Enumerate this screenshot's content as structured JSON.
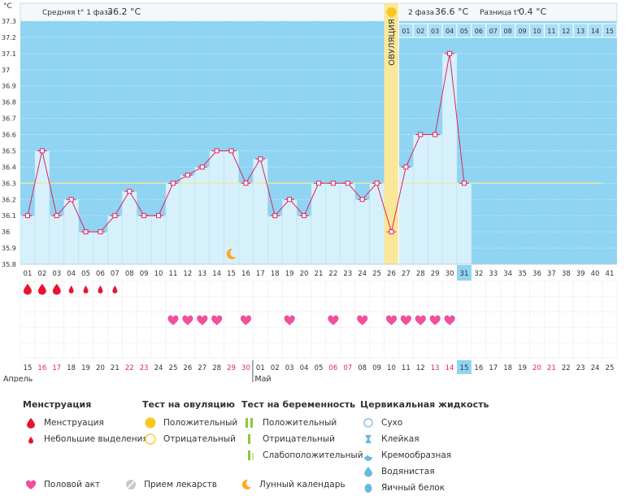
{
  "chart_data": {
    "type": "line",
    "y_unit": "°C",
    "ylim": [
      35.8,
      37.3
    ],
    "y_ticks": [
      "35.8",
      "35.9",
      "36",
      "36.1",
      "36.2",
      "36.3",
      "36.4",
      "36.5",
      "36.6",
      "36.7",
      "36.8",
      "36.9",
      "37",
      "37.1",
      "37.2",
      "37.3"
    ],
    "cycle_days": [
      "01",
      "02",
      "03",
      "04",
      "05",
      "06",
      "07",
      "08",
      "09",
      "10",
      "11",
      "12",
      "13",
      "14",
      "15",
      "16",
      "17",
      "18",
      "19",
      "20",
      "21",
      "22",
      "23",
      "24",
      "25",
      "26",
      "27",
      "28",
      "29",
      "30",
      "31",
      "32",
      "33",
      "34",
      "35",
      "36",
      "37",
      "38",
      "39",
      "40",
      "41"
    ],
    "dates": [
      "15",
      "16",
      "17",
      "18",
      "19",
      "20",
      "21",
      "22",
      "23",
      "24",
      "25",
      "26",
      "27",
      "28",
      "29",
      "30",
      "01",
      "02",
      "03",
      "04",
      "05",
      "06",
      "07",
      "08",
      "09",
      "10",
      "11",
      "12",
      "13",
      "14",
      "15",
      "16",
      "17",
      "18",
      "19",
      "20",
      "21",
      "22",
      "23",
      "24",
      "25"
    ],
    "weekend_dates_idx": [
      1,
      2,
      7,
      8,
      14,
      15,
      21,
      22,
      28,
      29,
      35,
      36
    ],
    "month_labels": [
      {
        "text": "Апрель",
        "start": 0
      },
      {
        "text": "Май",
        "start": 16
      }
    ],
    "current_day_index": 30,
    "temperatures": [
      36.1,
      36.5,
      36.1,
      36.2,
      36.0,
      36.0,
      36.1,
      36.25,
      36.1,
      36.1,
      36.3,
      36.35,
      36.4,
      36.5,
      36.5,
      36.3,
      36.45,
      36.1,
      36.2,
      36.1,
      36.3,
      36.3,
      36.3,
      36.2,
      36.3,
      36.0,
      36.4,
      36.6,
      36.6,
      37.1,
      36.3
    ],
    "coverline": 36.3,
    "ovulation_index": 25,
    "ovulation_label": "ОВУЛЯЦИЯ",
    "phase1_text": "Средняя t° 1 фаза",
    "phase1_value": "36.2 °C",
    "phase2_text": "2 фаза",
    "phase2_value": "36.6 °C",
    "diff_text": "Разница t°",
    "diff_value": "0.4 °C",
    "phase2_day_labels": [
      "01",
      "02",
      "03",
      "04",
      "05",
      "06",
      "07",
      "08",
      "09",
      "10",
      "11",
      "12",
      "13",
      "14",
      "15"
    ],
    "menstruation": [
      {
        "day": 0,
        "size": "big"
      },
      {
        "day": 1,
        "size": "big"
      },
      {
        "day": 2,
        "size": "big"
      },
      {
        "day": 3,
        "size": "small"
      },
      {
        "day": 4,
        "size": "small"
      },
      {
        "day": 5,
        "size": "small"
      },
      {
        "day": 6,
        "size": "small"
      }
    ],
    "intercourse_days": [
      10,
      11,
      12,
      13,
      15,
      18,
      21,
      23,
      25,
      26,
      27,
      28,
      29
    ],
    "moon_day": 14
  },
  "legend": {
    "menstruation": {
      "title": "Менструация",
      "items": [
        "Менструация",
        "Небольшие выделения"
      ]
    },
    "ovulation_test": {
      "title": "Тест на овуляцию",
      "items": [
        "Положительный",
        "Отрицательный"
      ]
    },
    "pregnancy_test": {
      "title": "Тест на беременность",
      "items": [
        "Положительный",
        "Отрицательный",
        "Слабоположительный"
      ]
    },
    "cervical": {
      "title": "Цервикальная жидкость",
      "items": [
        "Сухо",
        "Клейкая",
        "Кремообразная",
        "Водянистая",
        "Яичный белок"
      ]
    },
    "bottom": [
      "Половой акт",
      "Прием лекарств",
      "Лунный календарь"
    ]
  },
  "colors": {
    "bg": "#8fd4f2",
    "bar": "#d6f0fc",
    "line": "#e0245e",
    "ovulation": "#fbe79a",
    "coverline": "#f0e6a0",
    "pink": "#f0509c",
    "red": "#e8142e",
    "orange": "#ffa820",
    "yellow": "#f6c81c",
    "green": "#8cc63f"
  }
}
